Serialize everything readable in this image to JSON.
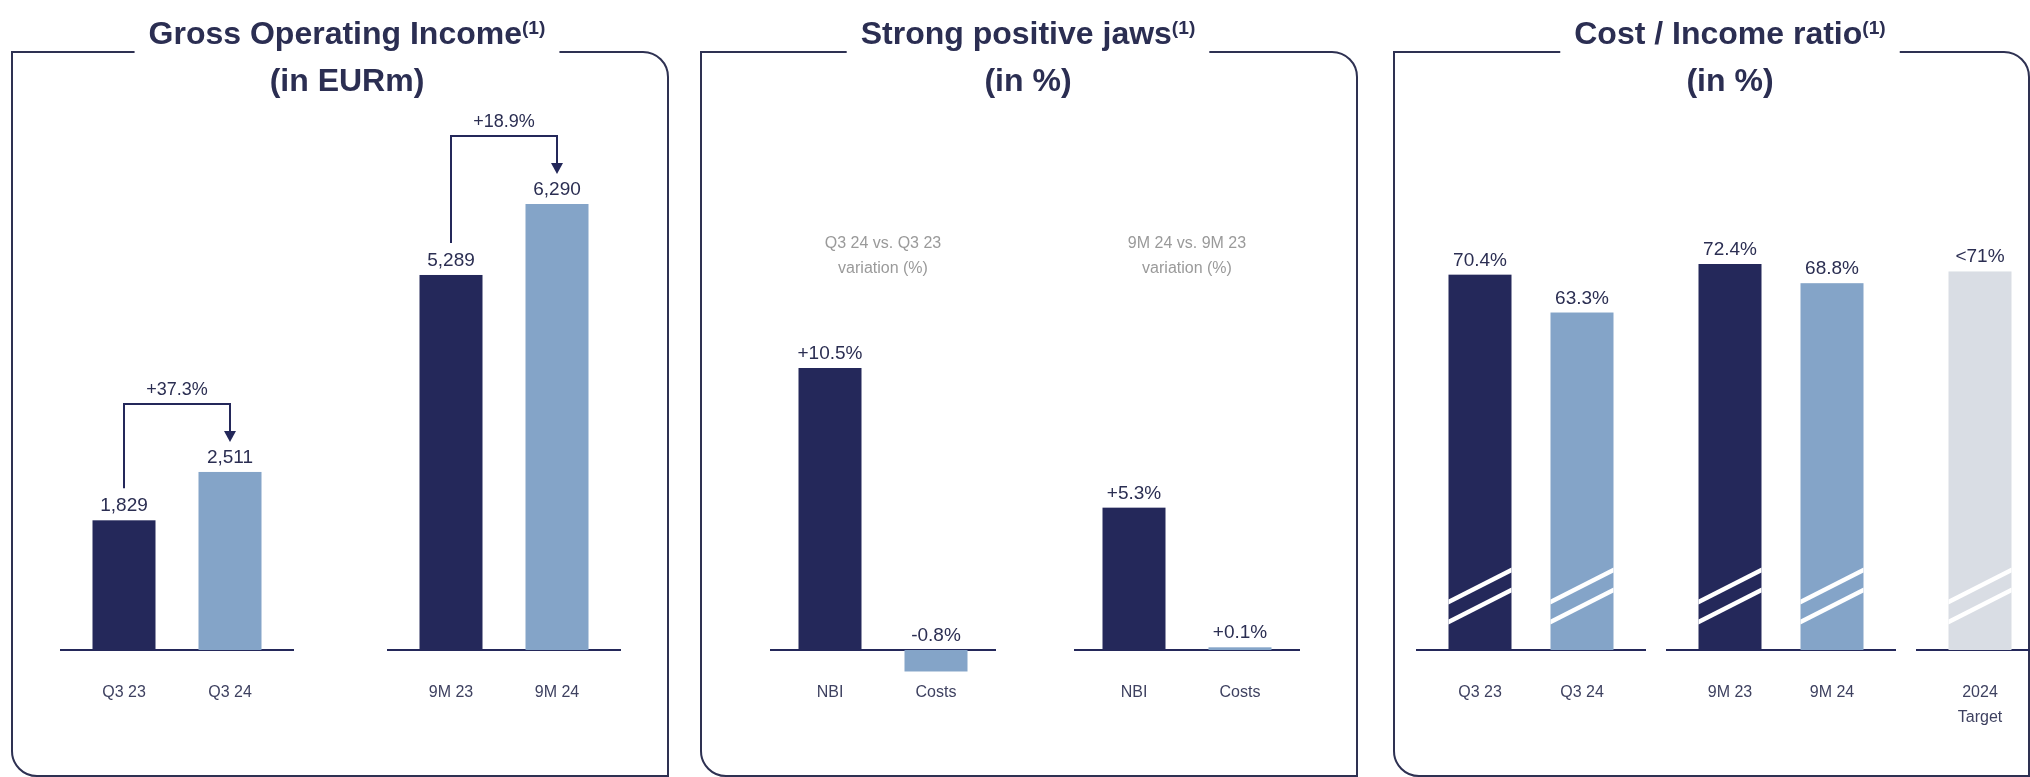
{
  "chart_data": [
    {
      "type": "bar",
      "title": "Gross Operating Income$^{(1)}$",
      "subtitle": "(in EURm)",
      "categories": [
        "Q3 23",
        "Q3 24",
        null,
        "9M 23",
        "9M 24"
      ],
      "values": [
        1829,
        2511,
        null,
        5289,
        6290
      ],
      "colors": [
        "#24285a",
        "#84a4c8",
        null,
        "#24285a",
        "#84a4c8"
      ],
      "value_labels": [
        "1,829",
        "2,511",
        null,
        "5,289",
        "6,290"
      ],
      "annotations": [
        "+37.3%",
        "+18.9%"
      ]
    },
    {
      "type": "bar",
      "title": "Strong positive jaws$^{(1)}$",
      "subtitle": "(in %)",
      "categories": [
        "NBI",
        "Costs",
        null,
        "NBI",
        "Costs"
      ],
      "values": [
        10.5,
        -0.8,
        null,
        5.3,
        0.1
      ],
      "colors": [
        "#24285a",
        "#84a4c8",
        null,
        "#24285a",
        "#84a4c8"
      ],
      "value_labels": [
        "+10.5%",
        "-0.8%",
        null,
        "+5.3%",
        "+0.1%"
      ],
      "ref_lines": [
        {
          "axis": "y",
          "value": 0
        }
      ],
      "annotations": [
        "Q3 24 vs. Q3 23\nvariation (%)",
        "9M 24 vs. 9M 23\nvariation (%)"
      ]
    },
    {
      "type": "bar",
      "title": "Cost / Income ratio$^{(1)}$",
      "subtitle": "(in %)",
      "categories": [
        "Q3 23",
        "Q3 24",
        null,
        "9M 23",
        "9M 24",
        null,
        "2024\nTarget"
      ],
      "values": [
        70.4,
        63.3,
        null,
        72.4,
        68.8,
        null,
        71
      ],
      "colors": [
        "#24285a",
        "#84a4c8",
        null,
        "#24285a",
        "#84a4c8",
        null,
        "#d9dde4"
      ],
      "value_labels": [
        "70.4%",
        "63.3%",
        null,
        "72.4%",
        "68.8%",
        null,
        "<71%"
      ]
    }
  ]
}
